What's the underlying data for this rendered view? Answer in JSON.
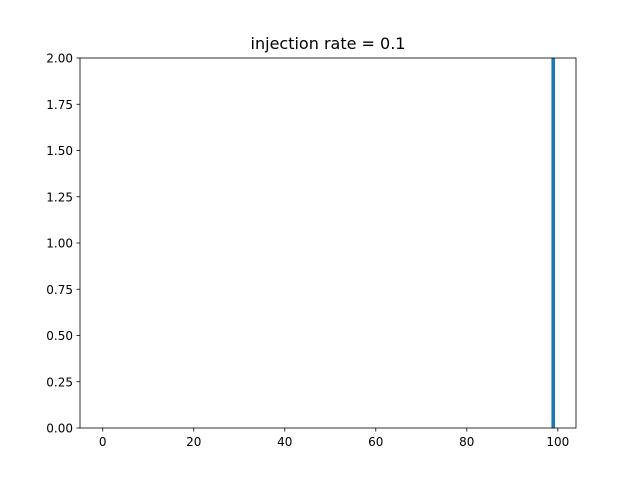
{
  "chart_data": {
    "type": "bar",
    "title": "injection rate = 0.1",
    "xlabel": "",
    "ylabel": "",
    "xlim": [
      -5,
      104
    ],
    "ylim": [
      0,
      2.0
    ],
    "x_ticks": [
      0,
      20,
      40,
      60,
      80,
      100
    ],
    "x_tick_labels": [
      "0",
      "20",
      "40",
      "60",
      "80",
      "100"
    ],
    "y_ticks": [
      0,
      0.25,
      0.5,
      0.75,
      1.0,
      1.25,
      1.5,
      1.75,
      2.0
    ],
    "y_tick_labels": [
      "0.00",
      "0.25",
      "0.50",
      "0.75",
      "1.00",
      "1.25",
      "1.50",
      "1.75",
      "2.00"
    ],
    "bar_color": "#1f77b4",
    "grid": false,
    "bars": [
      {
        "x": 99,
        "value": 2.0
      }
    ]
  }
}
